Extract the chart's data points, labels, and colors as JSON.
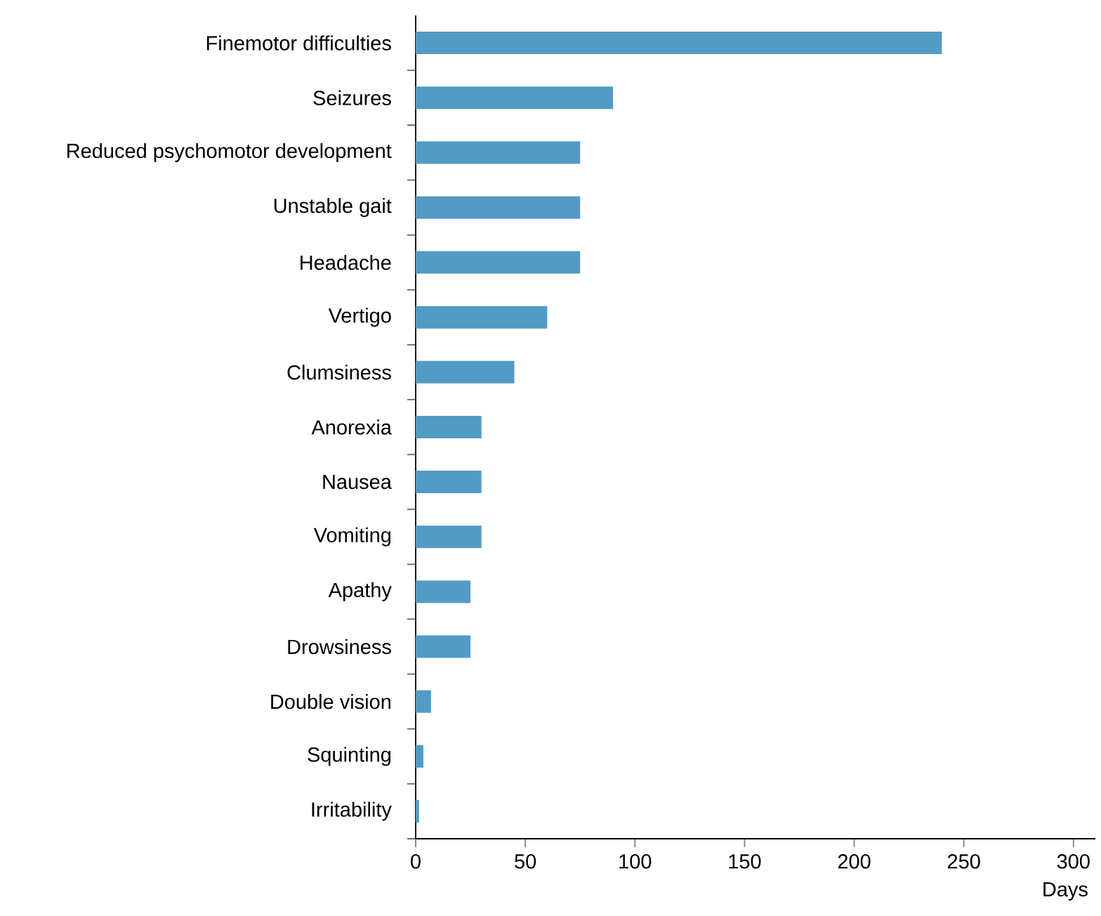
{
  "chart_data": {
    "type": "bar",
    "orientation": "horizontal",
    "xlabel": "Days",
    "categories": [
      "Finemotor difficulties",
      "Seizures",
      "Reduced psychomotor development",
      "Unstable gait",
      "Headache",
      "Vertigo",
      "Clumsiness",
      "Anorexia",
      "Nausea",
      "Vomiting",
      "Apathy",
      "Drowsiness",
      "Double vision",
      "Squinting",
      "Irritability"
    ],
    "values": [
      240,
      90,
      75,
      75,
      75,
      60,
      45,
      30,
      30,
      30,
      25,
      25,
      7,
      3.5,
      1.5
    ],
    "color": "#529bc4",
    "xlim": [
      0,
      310
    ],
    "xticks": [
      0,
      50,
      100,
      150,
      200,
      250,
      300
    ],
    "grid": false
  }
}
